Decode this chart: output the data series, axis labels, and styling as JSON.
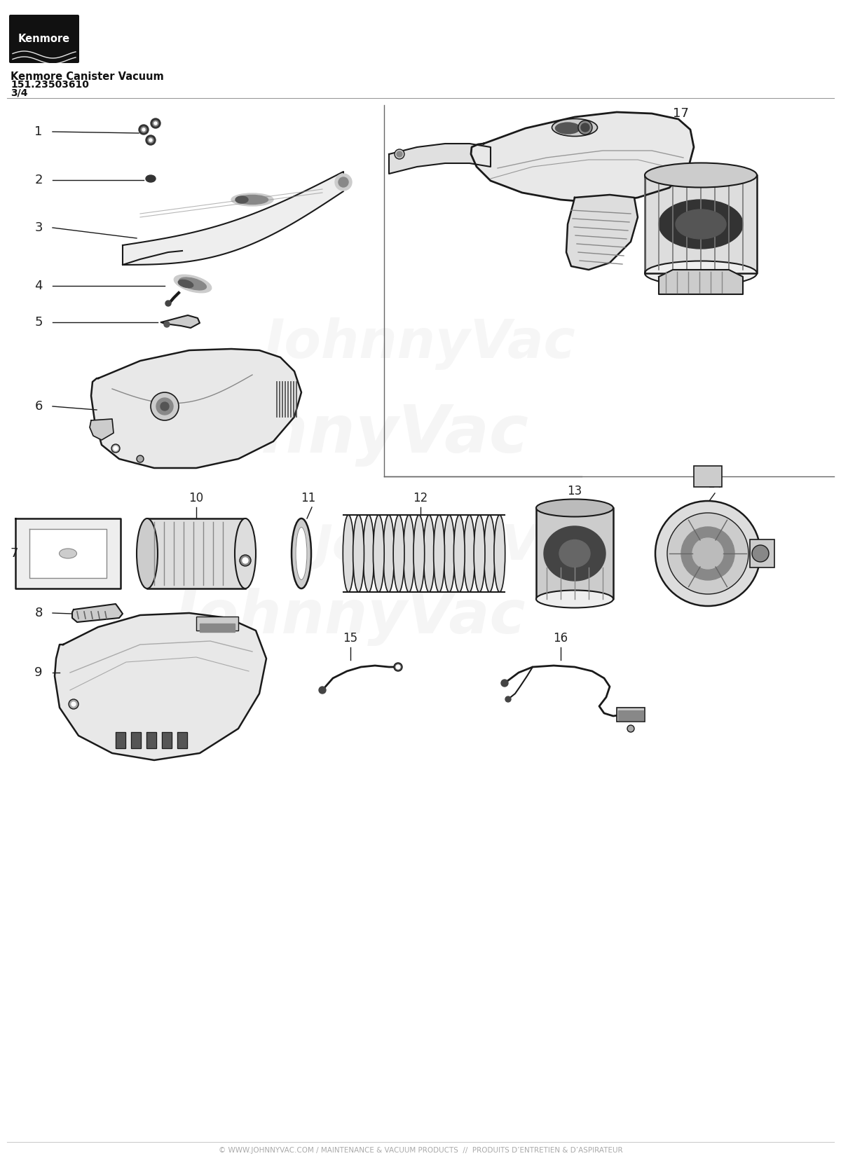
{
  "title_line1": "Kenmore Canister Vacuum",
  "title_line2": "151.23503610",
  "title_line3": "3/4",
  "footer_text": "© WWW.JOHNNYVAC.COM / MAINTENANCE & VACUUM PRODUCTS  //  PRODUITS D’ENTRETIEN & D’ASPIRATEUR",
  "bg": "#ffffff",
  "logo_bg": "#111111",
  "logo_text": "Kenmore",
  "lc": "#1a1a1a",
  "wm_color": "#c8c8c8",
  "label_color": "#222222",
  "label_fs": 13,
  "footer_color": "#aaaaaa",
  "footer_fs": 7.5
}
